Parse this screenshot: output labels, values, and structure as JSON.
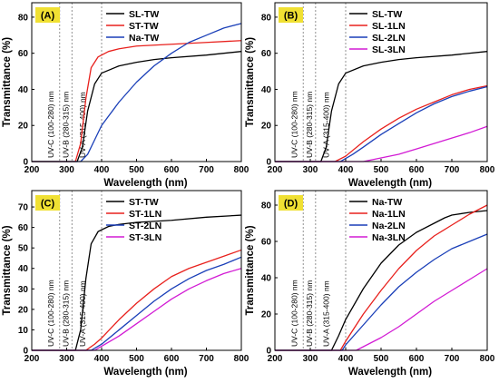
{
  "chart_data": [
    {
      "type": "line",
      "panel_label": "(A)",
      "xlabel": "Wavelength (nm)",
      "ylabel": "Transmittance (%)",
      "xlim": [
        200,
        800
      ],
      "ylim": [
        0,
        88
      ],
      "xticks": [
        200,
        300,
        400,
        500,
        600,
        700,
        800
      ],
      "yticks": [
        0,
        20,
        40,
        60,
        80
      ],
      "grid": false,
      "legend_position": "top-center",
      "uv_bands": [
        {
          "label": "UV-C (100-280) nm",
          "x": 280
        },
        {
          "label": "UV-B (280-315) nm",
          "x": 315
        },
        {
          "label": "UV-A (315-400) nm",
          "x": 400
        }
      ],
      "series": [
        {
          "name": "SL-TW",
          "color": "#000000",
          "x": [
            200,
            330,
            345,
            360,
            380,
            400,
            450,
            500,
            550,
            600,
            700,
            800
          ],
          "y": [
            0,
            0,
            8,
            28,
            43,
            49,
            53,
            55,
            56.5,
            57.5,
            59,
            61
          ]
        },
        {
          "name": "ST-TW",
          "color": "#e8211d",
          "x": [
            200,
            325,
            340,
            355,
            370,
            390,
            420,
            450,
            500,
            600,
            700,
            800
          ],
          "y": [
            0,
            0,
            10,
            35,
            52,
            58,
            61,
            62.5,
            64,
            65,
            66,
            67
          ]
        },
        {
          "name": "Na-TW",
          "color": "#1a3fb8",
          "x": [
            200,
            340,
            360,
            380,
            400,
            450,
            500,
            550,
            600,
            650,
            700,
            750,
            800
          ],
          "y": [
            0,
            0,
            4,
            12,
            20,
            33,
            44,
            53,
            60,
            66,
            70,
            74,
            76.5
          ]
        }
      ]
    },
    {
      "type": "line",
      "panel_label": "(B)",
      "xlabel": "Wavelength (nm)",
      "ylabel": "Transmittance (%)",
      "xlim": [
        200,
        800
      ],
      "ylim": [
        0,
        88
      ],
      "xticks": [
        200,
        300,
        400,
        500,
        600,
        700,
        800
      ],
      "yticks": [
        0,
        20,
        40,
        60,
        80
      ],
      "grid": false,
      "legend_position": "top-center",
      "uv_bands": [
        {
          "label": "UV-C (100-280) nm",
          "x": 280
        },
        {
          "label": "UV-B (280-315) nm",
          "x": 315
        },
        {
          "label": "UV-A (315-400) nm",
          "x": 400
        }
      ],
      "series": [
        {
          "name": "SL-TW",
          "color": "#000000",
          "x": [
            200,
            330,
            345,
            360,
            380,
            400,
            450,
            500,
            550,
            600,
            700,
            800
          ],
          "y": [
            0,
            0,
            8,
            28,
            43,
            49,
            53,
            55,
            56.5,
            57.5,
            59,
            61
          ]
        },
        {
          "name": "SL-1LN",
          "color": "#e8211d",
          "x": [
            200,
            370,
            400,
            450,
            500,
            550,
            600,
            650,
            700,
            750,
            800
          ],
          "y": [
            0,
            0,
            3,
            11,
            18,
            24,
            29,
            33,
            37,
            40,
            42
          ]
        },
        {
          "name": "SL-2LN",
          "color": "#1a3fb8",
          "x": [
            200,
            385,
            420,
            450,
            500,
            550,
            600,
            650,
            700,
            750,
            800
          ],
          "y": [
            0,
            0,
            4,
            8,
            15,
            21,
            27,
            32,
            36,
            39,
            41.5
          ]
        },
        {
          "name": "SL-3LN",
          "color": "#d21bd4",
          "x": [
            200,
            450,
            500,
            550,
            600,
            650,
            700,
            750,
            800
          ],
          "y": [
            0,
            0,
            2,
            4,
            7,
            10,
            13,
            16,
            19.5
          ]
        }
      ]
    },
    {
      "type": "line",
      "panel_label": "(C)",
      "xlabel": "Wavelength (nm)",
      "ylabel": "Transmittance (%)",
      "xlim": [
        200,
        800
      ],
      "ylim": [
        0,
        78
      ],
      "xticks": [
        200,
        300,
        400,
        500,
        600,
        700,
        800
      ],
      "yticks": [
        0,
        10,
        20,
        30,
        40,
        50,
        60,
        70
      ],
      "grid": false,
      "legend_position": "top-center",
      "uv_bands": [
        {
          "label": "UV-C (100-280) nm",
          "x": 280
        },
        {
          "label": "UV-B (280-315) nm",
          "x": 315
        },
        {
          "label": "UV-A (315-400) nm",
          "x": 400
        }
      ],
      "series": [
        {
          "name": "ST-TW",
          "color": "#000000",
          "x": [
            200,
            325,
            340,
            355,
            370,
            390,
            420,
            450,
            500,
            550,
            600,
            700,
            800
          ],
          "y": [
            0,
            0,
            10,
            35,
            52,
            58,
            60.5,
            61.5,
            62.5,
            63,
            63.5,
            65,
            66
          ]
        },
        {
          "name": "ST-1LN",
          "color": "#e8211d",
          "x": [
            200,
            355,
            380,
            400,
            450,
            500,
            550,
            600,
            650,
            700,
            750,
            800
          ],
          "y": [
            0,
            0,
            3,
            6,
            15,
            23,
            30,
            36,
            40,
            43,
            46,
            49
          ]
        },
        {
          "name": "ST-2LN",
          "color": "#1a3fb8",
          "x": [
            200,
            370,
            400,
            450,
            500,
            550,
            600,
            650,
            700,
            750,
            800
          ],
          "y": [
            0,
            0,
            3,
            10,
            17,
            24,
            30,
            35,
            39,
            42,
            45.5
          ]
        },
        {
          "name": "ST-3LN",
          "color": "#d21bd4",
          "x": [
            200,
            380,
            400,
            450,
            500,
            550,
            600,
            650,
            700,
            750,
            800
          ],
          "y": [
            0,
            0,
            2,
            7,
            13,
            19,
            25,
            30,
            34,
            37.5,
            40
          ]
        }
      ]
    },
    {
      "type": "line",
      "panel_label": "(D)",
      "xlabel": "Wavelength (nm)",
      "ylabel": "Transmittance (%)",
      "xlim": [
        200,
        800
      ],
      "ylim": [
        0,
        88
      ],
      "xticks": [
        200,
        300,
        400,
        500,
        600,
        700,
        800
      ],
      "yticks": [
        0,
        20,
        40,
        60,
        80
      ],
      "grid": false,
      "legend_position": "top-center",
      "uv_bands": [
        {
          "label": "UV-C (100-280) nm",
          "x": 280
        },
        {
          "label": "UV-B (280-315) nm",
          "x": 315
        },
        {
          "label": "UV-A (315-400) nm",
          "x": 400
        }
      ],
      "series": [
        {
          "name": "Na-TW",
          "color": "#000000",
          "x": [
            200,
            360,
            380,
            400,
            450,
            500,
            550,
            600,
            650,
            680,
            700,
            750,
            800
          ],
          "y": [
            0,
            0,
            8,
            17,
            34,
            48,
            58,
            65,
            70,
            73,
            74.5,
            76,
            77
          ]
        },
        {
          "name": "Na-1LN",
          "color": "#e8211d",
          "x": [
            200,
            385,
            400,
            450,
            500,
            550,
            600,
            650,
            700,
            750,
            800
          ],
          "y": [
            0,
            0,
            5,
            20,
            33,
            45,
            55,
            63,
            69,
            75,
            80
          ]
        },
        {
          "name": "Na-2LN",
          "color": "#1a3fb8",
          "x": [
            200,
            390,
            400,
            450,
            500,
            550,
            600,
            650,
            700,
            750,
            800
          ],
          "y": [
            0,
            0,
            3,
            14,
            25,
            35,
            43,
            50,
            56,
            60,
            64
          ]
        },
        {
          "name": "Na-3LN",
          "color": "#d21bd4",
          "x": [
            200,
            430,
            450,
            500,
            550,
            600,
            650,
            700,
            750,
            800
          ],
          "y": [
            0,
            0,
            2,
            7,
            13,
            20,
            27,
            33,
            39,
            45
          ]
        }
      ]
    }
  ]
}
